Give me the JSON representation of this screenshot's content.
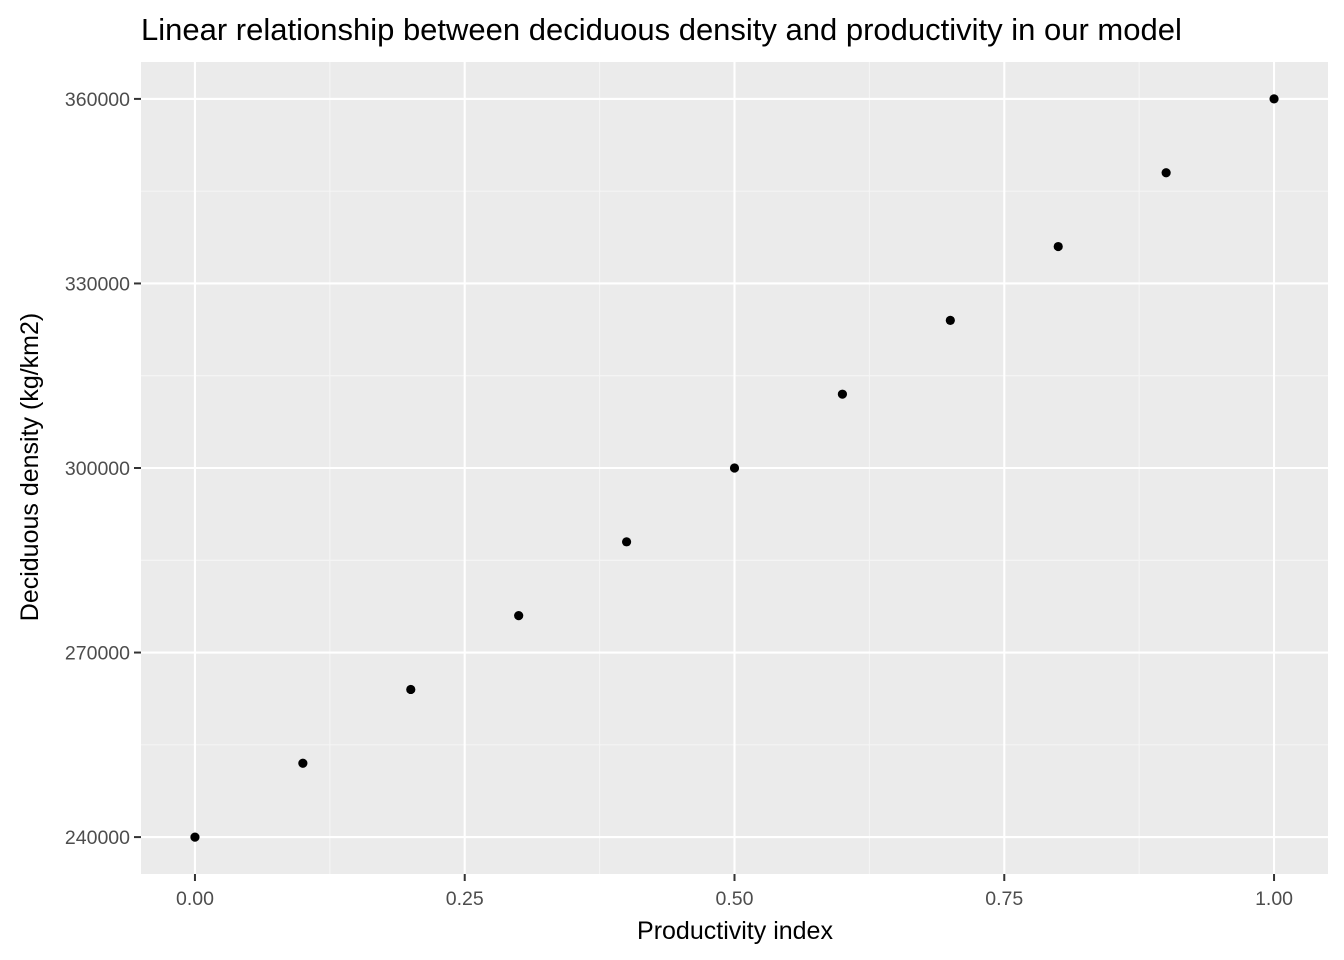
{
  "chart_data": {
    "type": "scatter",
    "title": "Linear relationship between deciduous density and productivity in our model",
    "xlabel": "Productivity index",
    "ylabel": "Deciduous density (kg/km2)",
    "x": [
      0.0,
      0.1,
      0.2,
      0.3,
      0.4,
      0.5,
      0.6,
      0.7,
      0.8,
      0.9,
      1.0
    ],
    "y": [
      240000,
      252000,
      264000,
      276000,
      288000,
      300000,
      312000,
      324000,
      336000,
      348000,
      360000
    ],
    "xlim": [
      -0.05,
      1.05
    ],
    "ylim": [
      234000,
      366000
    ],
    "x_ticks": [
      0.0,
      0.25,
      0.5,
      0.75,
      1.0
    ],
    "x_tick_labels": [
      "0.00",
      "0.25",
      "0.50",
      "0.75",
      "1.00"
    ],
    "y_ticks": [
      240000,
      270000,
      300000,
      330000,
      360000
    ],
    "y_tick_labels": [
      "240000",
      "270000",
      "300000",
      "330000",
      "360000"
    ],
    "grid": true,
    "legend": "none",
    "colors": {
      "panel": "#EBEBEB",
      "grid_major": "#FFFFFF",
      "grid_minor": "#F5F5F5",
      "point": "#000000",
      "tick_label": "#4D4D4D",
      "tick_mark": "#333333",
      "title": "#000000"
    }
  }
}
